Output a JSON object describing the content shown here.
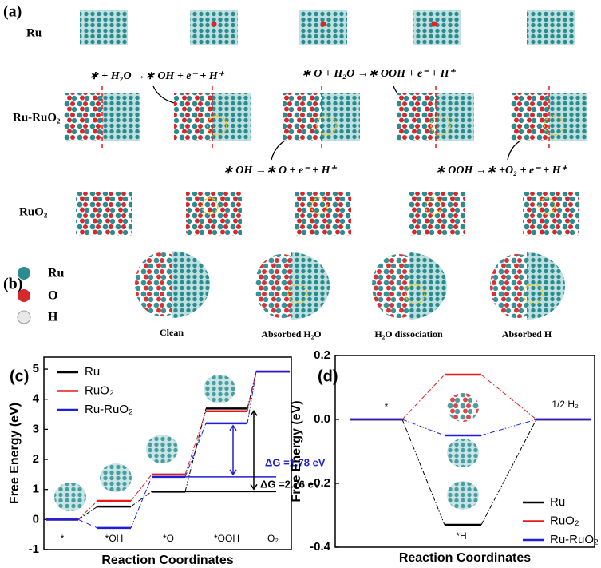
{
  "panels": {
    "a": "(a)",
    "b": "(b)",
    "c": "(c)",
    "d": "(d)"
  },
  "rows": [
    "Ru",
    "Ru-RuO₂",
    "RuO₂"
  ],
  "equations": [
    "∗ + H₂O →∗ OH + e⁻ + H⁺",
    "∗ O + H₂O →∗ OOH + e⁻ + H⁺",
    "∗ OH →∗ O + e⁻ + H⁺",
    "∗ OOH →∗ +O₂ + e⁻ + H⁺"
  ],
  "elements": [
    "Ru",
    "O",
    "H"
  ],
  "states": [
    "Clean",
    "Absorbed H₂O",
    "H₂O dissociation",
    "Absorbed H"
  ],
  "chart_data": [
    {
      "type": "step",
      "ylabel": "Free Energy (eV)",
      "xlabel": "Reaction Coordinates",
      "categories": [
        "*",
        "*OH",
        "*O",
        "*OOH",
        "O₂"
      ],
      "series": [
        {
          "name": "Ru",
          "color": "#000000",
          "values": [
            0,
            0.43,
            0.93,
            3.69,
            4.92
          ]
        },
        {
          "name": "RuO₂",
          "color": "#e8191b",
          "values": [
            0,
            0.62,
            1.5,
            3.6,
            4.92
          ]
        },
        {
          "name": "Ru-RuO₂",
          "color": "#1f1fd6",
          "values": [
            0,
            -0.28,
            1.42,
            3.2,
            4.92
          ]
        }
      ],
      "ylim": [
        -1,
        5.4
      ],
      "yticks": [
        -1,
        0,
        1,
        2,
        3,
        4,
        5
      ],
      "legend": "upper left",
      "annotations": [
        {
          "text": "ΔG =1.78 eV",
          "color": "#1f1fd6"
        },
        {
          "text": "ΔG =2.76 eV",
          "color": "#000000"
        }
      ]
    },
    {
      "type": "step",
      "ylabel": "Free Energy (eV)",
      "xlabel": "Reaction Coordinates",
      "categories": [
        "*",
        "*H",
        "1/2 H₂"
      ],
      "series": [
        {
          "name": "Ru",
          "color": "#000000",
          "values": [
            0,
            -0.33,
            0
          ]
        },
        {
          "name": "RuO₂",
          "color": "#e8191b",
          "values": [
            0,
            0.14,
            0
          ]
        },
        {
          "name": "Ru-RuO₂",
          "color": "#1f1fd6",
          "values": [
            0,
            -0.05,
            0
          ]
        }
      ],
      "ylim": [
        -0.4,
        0.2
      ],
      "yticks": [
        -0.4,
        -0.2,
        {
          "value": 0,
          "label": "0.0"
        },
        0.2
      ],
      "legend": "lower right"
    }
  ]
}
